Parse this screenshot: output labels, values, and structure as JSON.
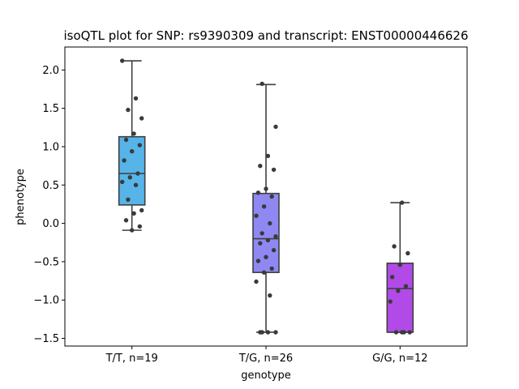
{
  "chart_data": {
    "type": "box",
    "title": "isoQTL plot for SNP: rs9390309 and transcript: ENST00000446626",
    "xlabel": "genotype",
    "ylabel": "phenotype",
    "ylim": [
      -1.6,
      2.3
    ],
    "yticks": [
      -1.5,
      -1.0,
      -0.5,
      0.0,
      0.5,
      1.0,
      1.5,
      2.0
    ],
    "ytick_labels": [
      "−1.5",
      "−1.0",
      "−0.5",
      "0.0",
      "0.5",
      "1.0",
      "1.5",
      "2.0"
    ],
    "grid": false,
    "categories": [
      "T/T, n=19",
      "T/G, n=26",
      "G/G, n=12"
    ],
    "boxes": [
      {
        "color": "#56b4e9",
        "whisker_low": -0.09,
        "q1": 0.24,
        "median": 0.65,
        "q3": 1.13,
        "whisker_high": 2.12
      },
      {
        "color": "#9088f2",
        "whisker_low": -1.42,
        "q1": -0.64,
        "median": -0.2,
        "q3": 0.39,
        "whisker_high": 1.81
      },
      {
        "color": "#b24ae8",
        "whisker_low": -1.42,
        "q1": -1.42,
        "median": -0.85,
        "q3": -0.52,
        "whisker_high": 0.27
      }
    ],
    "points": [
      [
        2.12,
        1.63,
        1.48,
        1.37,
        1.17,
        1.09,
        1.02,
        0.94,
        0.82,
        0.65,
        0.6,
        0.54,
        0.5,
        0.31,
        0.17,
        0.13,
        0.04,
        -0.04,
        -0.09
      ],
      [
        1.82,
        1.26,
        0.88,
        0.75,
        0.7,
        0.45,
        0.4,
        0.35,
        0.22,
        0.1,
        -0.0,
        -0.13,
        -0.17,
        -0.22,
        -0.26,
        -0.35,
        -0.44,
        -0.49,
        -0.59,
        -0.64,
        -0.76,
        -0.94,
        -1.42,
        -1.42,
        -1.42,
        -1.42
      ],
      [
        0.27,
        -0.3,
        -0.39,
        -0.54,
        -0.7,
        -0.82,
        -0.88,
        -1.02,
        -1.42,
        -1.42,
        -1.42,
        -1.42
      ]
    ]
  }
}
